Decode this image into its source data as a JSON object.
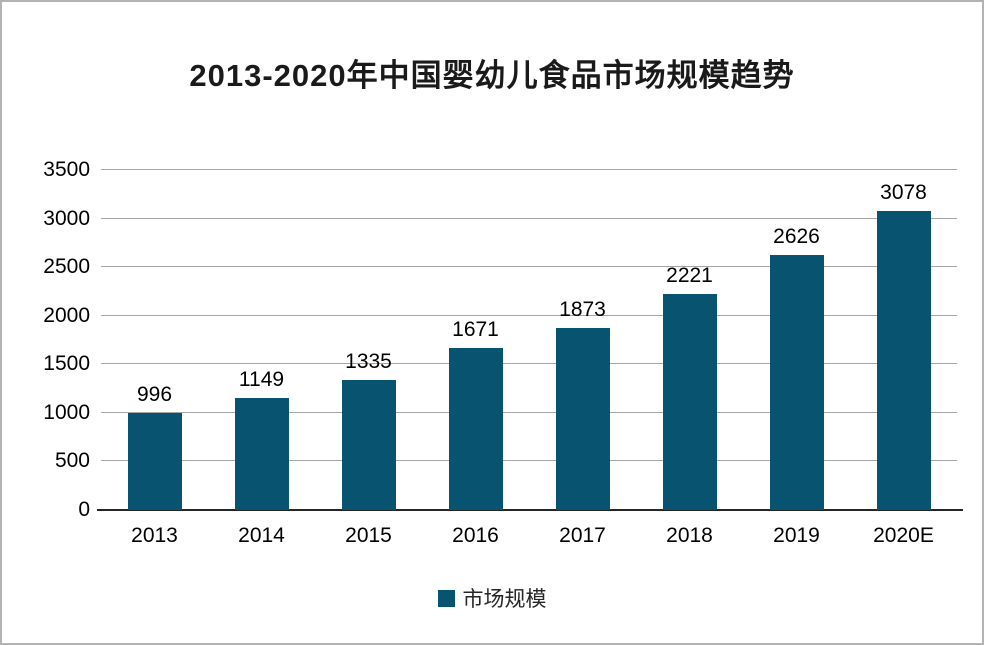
{
  "chart_data": {
    "type": "bar",
    "title": "2013-2020年中国婴幼儿食品市场规模趋势",
    "categories": [
      "2013",
      "2014",
      "2015",
      "2016",
      "2017",
      "2018",
      "2019",
      "2020E"
    ],
    "series": [
      {
        "name": "市场规模",
        "values": [
          996,
          1149,
          1335,
          1671,
          1873,
          2221,
          2626,
          3078
        ]
      }
    ],
    "ylim": [
      0,
      3500
    ],
    "yticks": [
      0,
      500,
      1000,
      1500,
      2000,
      2500,
      3000,
      3500
    ],
    "xlabel": "",
    "ylabel": "",
    "grid": "horizontal",
    "legend_position": "bottom",
    "data_labels_shown": true
  },
  "legend": {
    "label": "市场规模"
  },
  "colors": {
    "bar": "#085470",
    "gridline": "#a6a6a6",
    "axis_line": "#262626",
    "text": "#000000",
    "title_text": "#1a1a1a",
    "background": "#ffffff",
    "frame_border": "#b3b3b3"
  }
}
